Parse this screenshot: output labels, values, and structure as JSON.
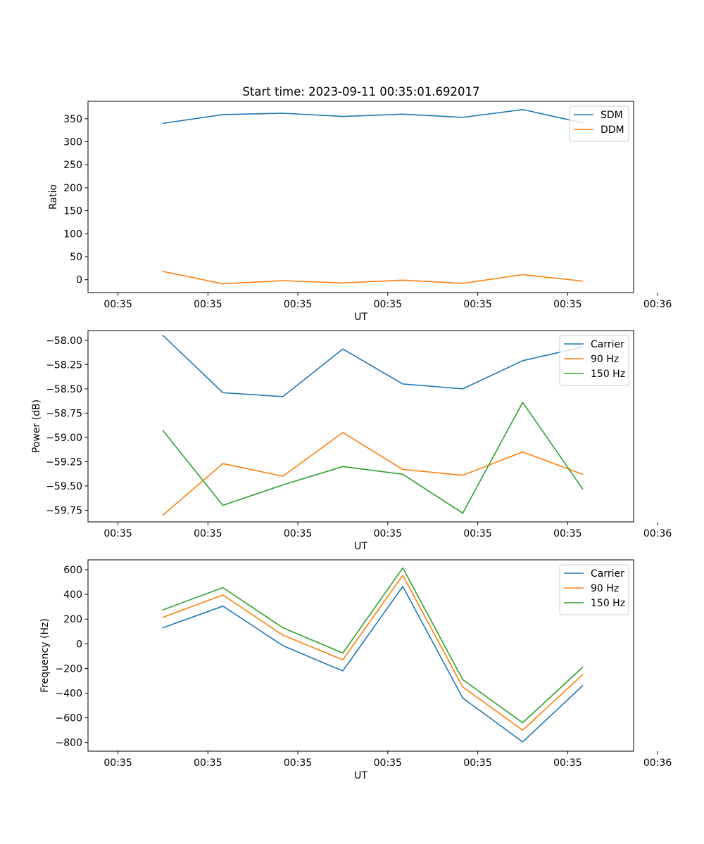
{
  "figure_title": "Start time: 2023-09-11 00:35:01.692017",
  "chart_data": [
    {
      "type": "line",
      "id": "ratio",
      "title": "Start time: 2023-09-11 00:35:01.692017",
      "xlabel": "UT",
      "ylabel": "Ratio",
      "xlim": [
        -0.5,
        8.6
      ],
      "ylim": [
        -28,
        388
      ],
      "x_ticks": [
        0,
        1.5,
        3,
        4.5,
        6,
        7.5,
        9
      ],
      "x_tick_labels": [
        "00:35",
        "00:35",
        "00:35",
        "00:35",
        "00:35",
        "00:35",
        "00:36"
      ],
      "y_ticks": [
        0,
        50,
        100,
        150,
        200,
        250,
        300,
        350
      ],
      "y_tick_labels": [
        "0",
        "50",
        "100",
        "150",
        "200",
        "250",
        "300",
        "350"
      ],
      "x": [
        0.75,
        1.75,
        2.75,
        3.75,
        4.75,
        5.75,
        6.75,
        7.75
      ],
      "series": [
        {
          "name": "SDM",
          "color": "#1f77b4",
          "values": [
            340,
            359,
            362,
            355,
            360,
            353,
            370,
            341
          ]
        },
        {
          "name": "DDM",
          "color": "#ff7f0e",
          "values": [
            18,
            -9,
            -2,
            -7,
            -1,
            -8,
            11,
            -3
          ]
        }
      ],
      "legend": "top-right"
    },
    {
      "type": "line",
      "id": "power",
      "title": "",
      "xlabel": "UT",
      "ylabel": "Power (dB)",
      "xlim": [
        -0.5,
        8.6
      ],
      "ylim": [
        -59.87,
        -57.9
      ],
      "x_ticks": [
        0,
        1.5,
        3,
        4.5,
        6,
        7.5,
        9
      ],
      "x_tick_labels": [
        "00:35",
        "00:35",
        "00:35",
        "00:35",
        "00:35",
        "00:35",
        "00:36"
      ],
      "y_ticks": [
        -59.75,
        -59.5,
        -59.25,
        -59.0,
        -58.75,
        -58.5,
        -58.25,
        -58.0
      ],
      "y_tick_labels": [
        "−59.75",
        "−59.50",
        "−59.25",
        "−59.00",
        "−58.75",
        "−58.50",
        "−58.25",
        "−58.00"
      ],
      "x": [
        0.75,
        1.75,
        2.75,
        3.75,
        4.75,
        5.75,
        6.75,
        7.75
      ],
      "series": [
        {
          "name": "Carrier",
          "color": "#1f77b4",
          "values": [
            -57.95,
            -58.54,
            -58.58,
            -58.09,
            -58.45,
            -58.5,
            -58.21,
            -58.07
          ]
        },
        {
          "name": "90 Hz",
          "color": "#ff7f0e",
          "values": [
            -59.8,
            -59.27,
            -59.4,
            -58.95,
            -59.33,
            -59.39,
            -59.15,
            -59.38
          ]
        },
        {
          "name": "150 Hz",
          "color": "#2ca02c",
          "values": [
            -58.93,
            -59.7,
            -59.49,
            -59.3,
            -59.38,
            -59.78,
            -58.64,
            -59.53
          ]
        }
      ],
      "legend": "top-right"
    },
    {
      "type": "line",
      "id": "frequency",
      "title": "",
      "xlabel": "UT",
      "ylabel": "Frequency (Hz)",
      "xlim": [
        -0.5,
        8.6
      ],
      "ylim": [
        -870,
        680
      ],
      "x_ticks": [
        0,
        1.5,
        3,
        4.5,
        6,
        7.5,
        9
      ],
      "x_tick_labels": [
        "00:35",
        "00:35",
        "00:35",
        "00:35",
        "00:35",
        "00:35",
        "00:36"
      ],
      "y_ticks": [
        -800,
        -600,
        -400,
        -200,
        0,
        200,
        400,
        600
      ],
      "y_tick_labels": [
        "−800",
        "−600",
        "−400",
        "−200",
        "0",
        "200",
        "400",
        "600"
      ],
      "x": [
        0.75,
        1.75,
        2.75,
        3.75,
        4.75,
        5.75,
        6.75,
        7.75
      ],
      "series": [
        {
          "name": "Carrier",
          "color": "#1f77b4",
          "values": [
            130,
            305,
            -15,
            -220,
            465,
            -440,
            -795,
            -340
          ]
        },
        {
          "name": "90 Hz",
          "color": "#ff7f0e",
          "values": [
            215,
            395,
            70,
            -130,
            555,
            -350,
            -700,
            -250
          ]
        },
        {
          "name": "150 Hz",
          "color": "#2ca02c",
          "values": [
            275,
            455,
            130,
            -75,
            615,
            -290,
            -640,
            -190
          ]
        }
      ],
      "legend": "top-right"
    }
  ]
}
